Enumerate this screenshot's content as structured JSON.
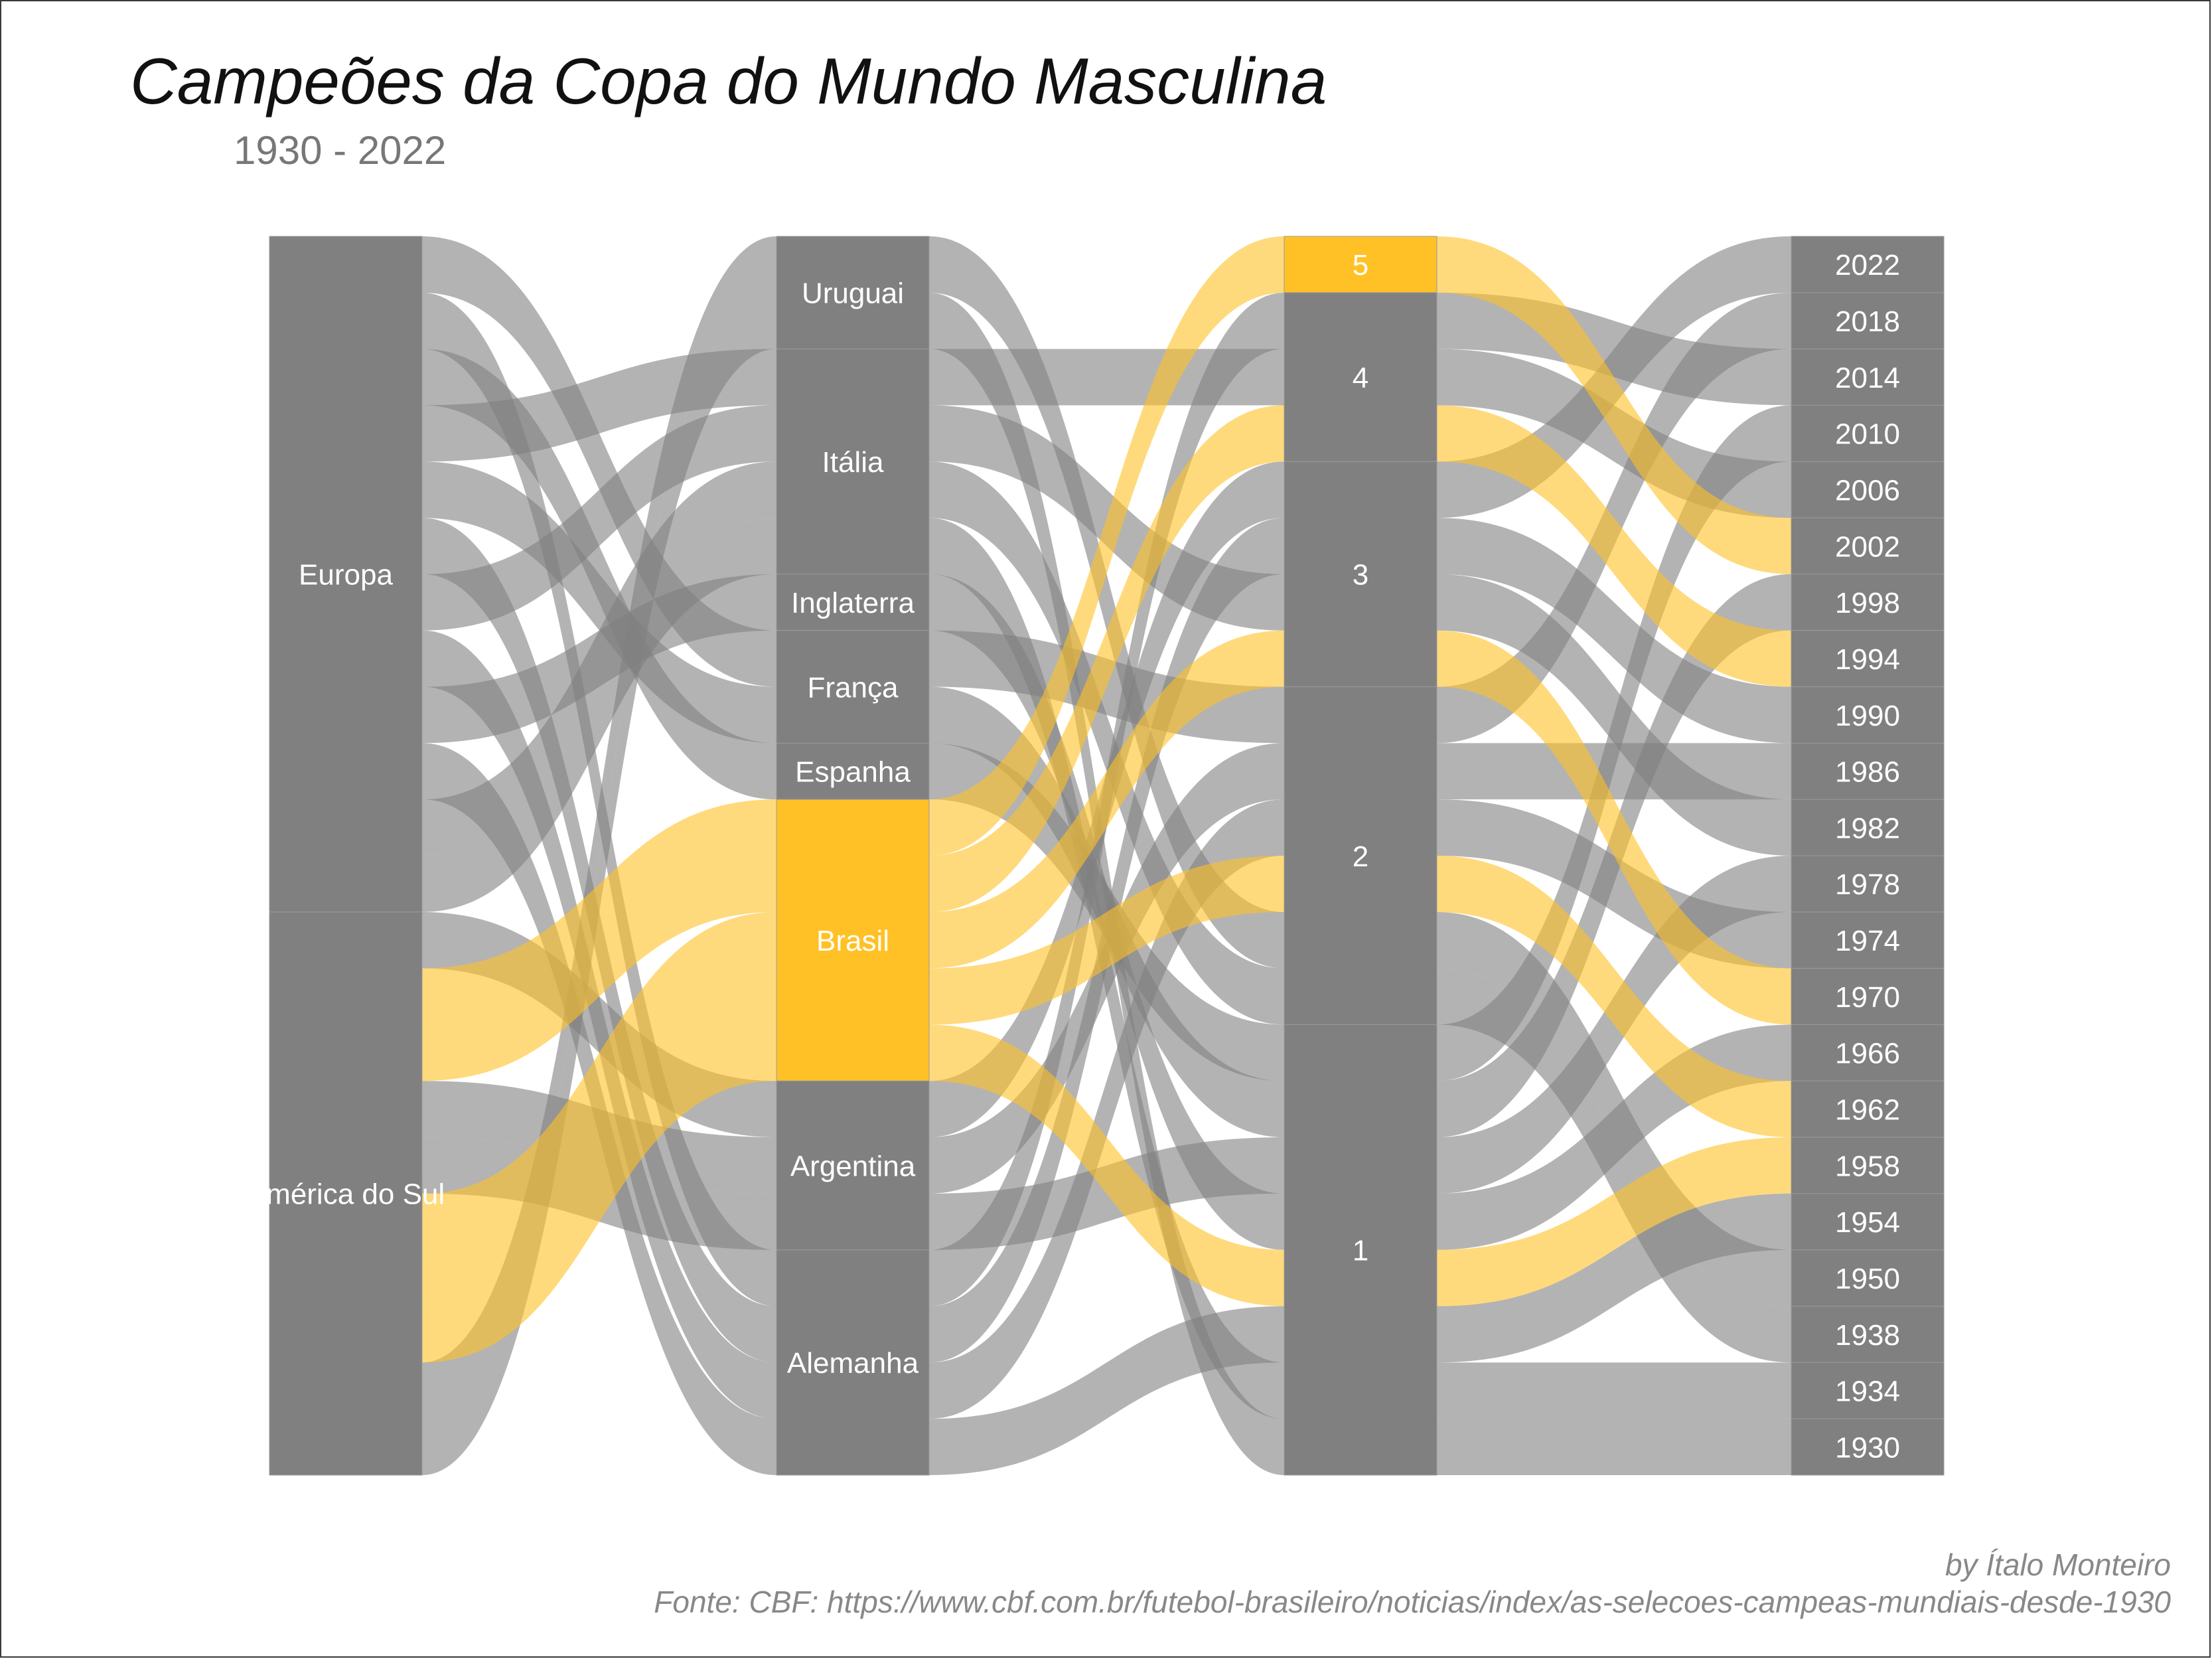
{
  "chart_data": {
    "type": "alluvial",
    "title": "Campeões da Copa do Mundo Masculina",
    "subtitle": "1930 - 2022",
    "highlight": "Brasil",
    "colors": {
      "node": "#808080",
      "flow": "#b0b0b0",
      "highlight": "#ffc125",
      "node_text": "#ffffff"
    },
    "axes": [
      {
        "name": "continente",
        "levels": [
          "Europa",
          "América do Sul"
        ]
      },
      {
        "name": "seleção",
        "levels": [
          "Uruguai",
          "Itália",
          "Inglaterra",
          "França",
          "Espanha",
          "Brasil",
          "Argentina",
          "Alemanha"
        ]
      },
      {
        "name": "títulos",
        "levels": [
          "5",
          "4",
          "3",
          "2",
          "1"
        ]
      },
      {
        "name": "ano",
        "levels": [
          "2022",
          "2018",
          "2014",
          "2010",
          "2006",
          "2002",
          "1998",
          "1994",
          "1990",
          "1986",
          "1982",
          "1978",
          "1974",
          "1970",
          "1966",
          "1962",
          "1958",
          "1954",
          "1950",
          "1938",
          "1934",
          "1930"
        ]
      }
    ],
    "records": [
      {
        "year": "1930",
        "team": "Uruguai",
        "continent": "América do Sul",
        "titles": "1"
      },
      {
        "year": "1934",
        "team": "Itália",
        "continent": "Europa",
        "titles": "1"
      },
      {
        "year": "1938",
        "team": "Itália",
        "continent": "Europa",
        "titles": "2"
      },
      {
        "year": "1950",
        "team": "Uruguai",
        "continent": "América do Sul",
        "titles": "2"
      },
      {
        "year": "1954",
        "team": "Alemanha",
        "continent": "Europa",
        "titles": "1"
      },
      {
        "year": "1958",
        "team": "Brasil",
        "continent": "América do Sul",
        "titles": "1"
      },
      {
        "year": "1962",
        "team": "Brasil",
        "continent": "América do Sul",
        "titles": "2"
      },
      {
        "year": "1966",
        "team": "Inglaterra",
        "continent": "Europa",
        "titles": "1"
      },
      {
        "year": "1970",
        "team": "Brasil",
        "continent": "América do Sul",
        "titles": "3"
      },
      {
        "year": "1974",
        "team": "Alemanha",
        "continent": "Europa",
        "titles": "2"
      },
      {
        "year": "1978",
        "team": "Argentina",
        "continent": "América do Sul",
        "titles": "1"
      },
      {
        "year": "1982",
        "team": "Itália",
        "continent": "Europa",
        "titles": "3"
      },
      {
        "year": "1986",
        "team": "Argentina",
        "continent": "América do Sul",
        "titles": "2"
      },
      {
        "year": "1990",
        "team": "Alemanha",
        "continent": "Europa",
        "titles": "3"
      },
      {
        "year": "1994",
        "team": "Brasil",
        "continent": "América do Sul",
        "titles": "4"
      },
      {
        "year": "1998",
        "team": "França",
        "continent": "Europa",
        "titles": "1"
      },
      {
        "year": "2002",
        "team": "Brasil",
        "continent": "América do Sul",
        "titles": "5"
      },
      {
        "year": "2006",
        "team": "Itália",
        "continent": "Europa",
        "titles": "4"
      },
      {
        "year": "2010",
        "team": "Espanha",
        "continent": "Europa",
        "titles": "1"
      },
      {
        "year": "2014",
        "team": "Alemanha",
        "continent": "Europa",
        "titles": "4"
      },
      {
        "year": "2018",
        "team": "França",
        "continent": "Europa",
        "titles": "2"
      },
      {
        "year": "2022",
        "team": "Argentina",
        "continent": "América do Sul",
        "titles": "3"
      }
    ]
  },
  "caption": {
    "author": "by Ítalo Monteiro",
    "source": "Fonte: CBF: https://www.cbf.com.br/futebol-brasileiro/noticias/index/as-selecoes-campeas-mundiais-desde-1930"
  }
}
